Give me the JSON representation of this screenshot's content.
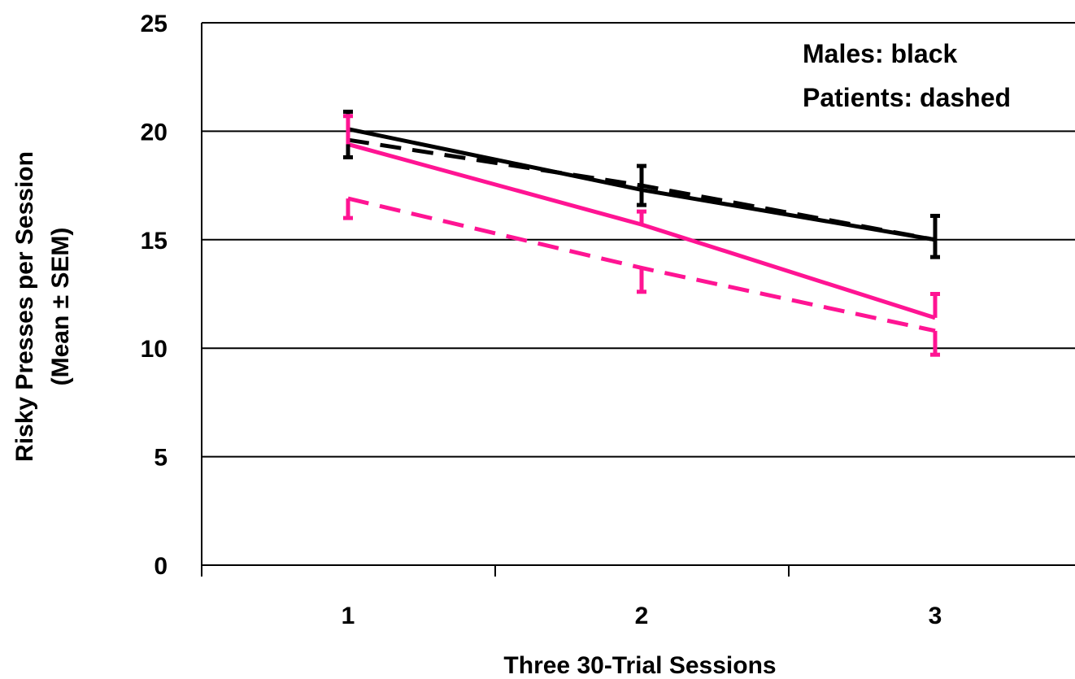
{
  "chart_data": {
    "type": "line",
    "title": "",
    "xlabel": "Three 30-Trial Sessions",
    "ylabel_lines": [
      "Risky Presses per Session",
      "(Mean ± SEM)"
    ],
    "categories": [
      "1",
      "2",
      "3"
    ],
    "ylim": [
      0,
      25
    ],
    "yticks": [
      0,
      5,
      10,
      15,
      20,
      25
    ],
    "grid": "horizontal",
    "legend_placement": "top-right",
    "legend_lines": [
      "Males: black",
      "Patients: dashed"
    ],
    "series": [
      {
        "color": "#000000",
        "dashed": false,
        "values": [
          20.1,
          17.3,
          15.0
        ],
        "sem": [
          0.8,
          1.1,
          1.1
        ]
      },
      {
        "color": "#000000",
        "dashed": true,
        "values": [
          19.6,
          17.5,
          15.0
        ],
        "sem": [
          0.8,
          0.9,
          0.8
        ]
      },
      {
        "color": "#ff1493",
        "dashed": false,
        "values": [
          19.4,
          15.7,
          11.4
        ],
        "sem": [
          1.3,
          0.6,
          1.1
        ]
      },
      {
        "color": "#ff1493",
        "dashed": true,
        "values": [
          16.9,
          13.7,
          10.8
        ],
        "sem": [
          0.9,
          1.1,
          1.1
        ]
      }
    ]
  }
}
